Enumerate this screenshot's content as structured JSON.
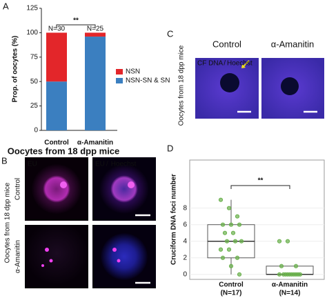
{
  "panel_labels": [
    "A",
    "B",
    "C",
    "D"
  ],
  "chart_data": [
    {
      "type": "stacked-bar",
      "categories": [
        "Control",
        "α-Amanitin"
      ],
      "x_label": "Oocytes from 18 dpp mice",
      "y_label": "Prop. of oocytes (%)",
      "series": [
        {
          "name": "NSN-SN & SN",
          "color": "#3b7fc0",
          "values": [
            50,
            96
          ]
        },
        {
          "name": "NSN",
          "color": "#e3262a",
          "values": [
            50,
            4
          ]
        }
      ],
      "ylim": [
        0,
        125
      ],
      "yticks": [
        0,
        25,
        50,
        75,
        100,
        125
      ],
      "n_labels": [
        "N=30",
        "N=25"
      ],
      "significance": "**"
    },
    {
      "type": "box",
      "categories": [
        "Control",
        "α-Amanitin"
      ],
      "n_labels": [
        "(N=17)",
        "(N=14)"
      ],
      "y_label": "Cruciform DNA foci number",
      "boxes": [
        {
          "whislo": 0,
          "q1": 2,
          "med": 4,
          "q3": 6,
          "whishi": 9
        },
        {
          "whislo": 0,
          "q1": 0,
          "med": 0,
          "q3": 1,
          "whishi": 1
        }
      ],
      "points": [
        [
          9,
          8,
          7,
          6,
          6,
          6,
          5,
          5,
          4,
          4,
          4,
          3,
          3,
          2,
          2,
          1,
          0
        ],
        [
          4,
          4,
          1,
          1,
          0,
          0,
          0,
          0,
          0,
          0,
          0,
          0,
          0,
          0
        ]
      ],
      "point_color": "#6ab04c",
      "ylim": [
        -0.6,
        13.8
      ],
      "yticks": [
        0,
        2,
        4,
        6,
        8
      ],
      "significance": "**",
      "grid": true
    }
  ],
  "panel_b": {
    "side_label": "Oocytes from 18 dpp mice",
    "row_labels": [
      "Control",
      "α-Amanitin"
    ],
    "stain": "EU",
    "separator": "/",
    "counterstain": "Hoechst"
  },
  "panel_c": {
    "side_label": "Oocytes from 18 dpp mice",
    "column_labels": [
      "Control",
      "α-Amanitin"
    ],
    "stain": "CF DNA",
    "separator": "/",
    "counterstain": "Hoechst"
  }
}
